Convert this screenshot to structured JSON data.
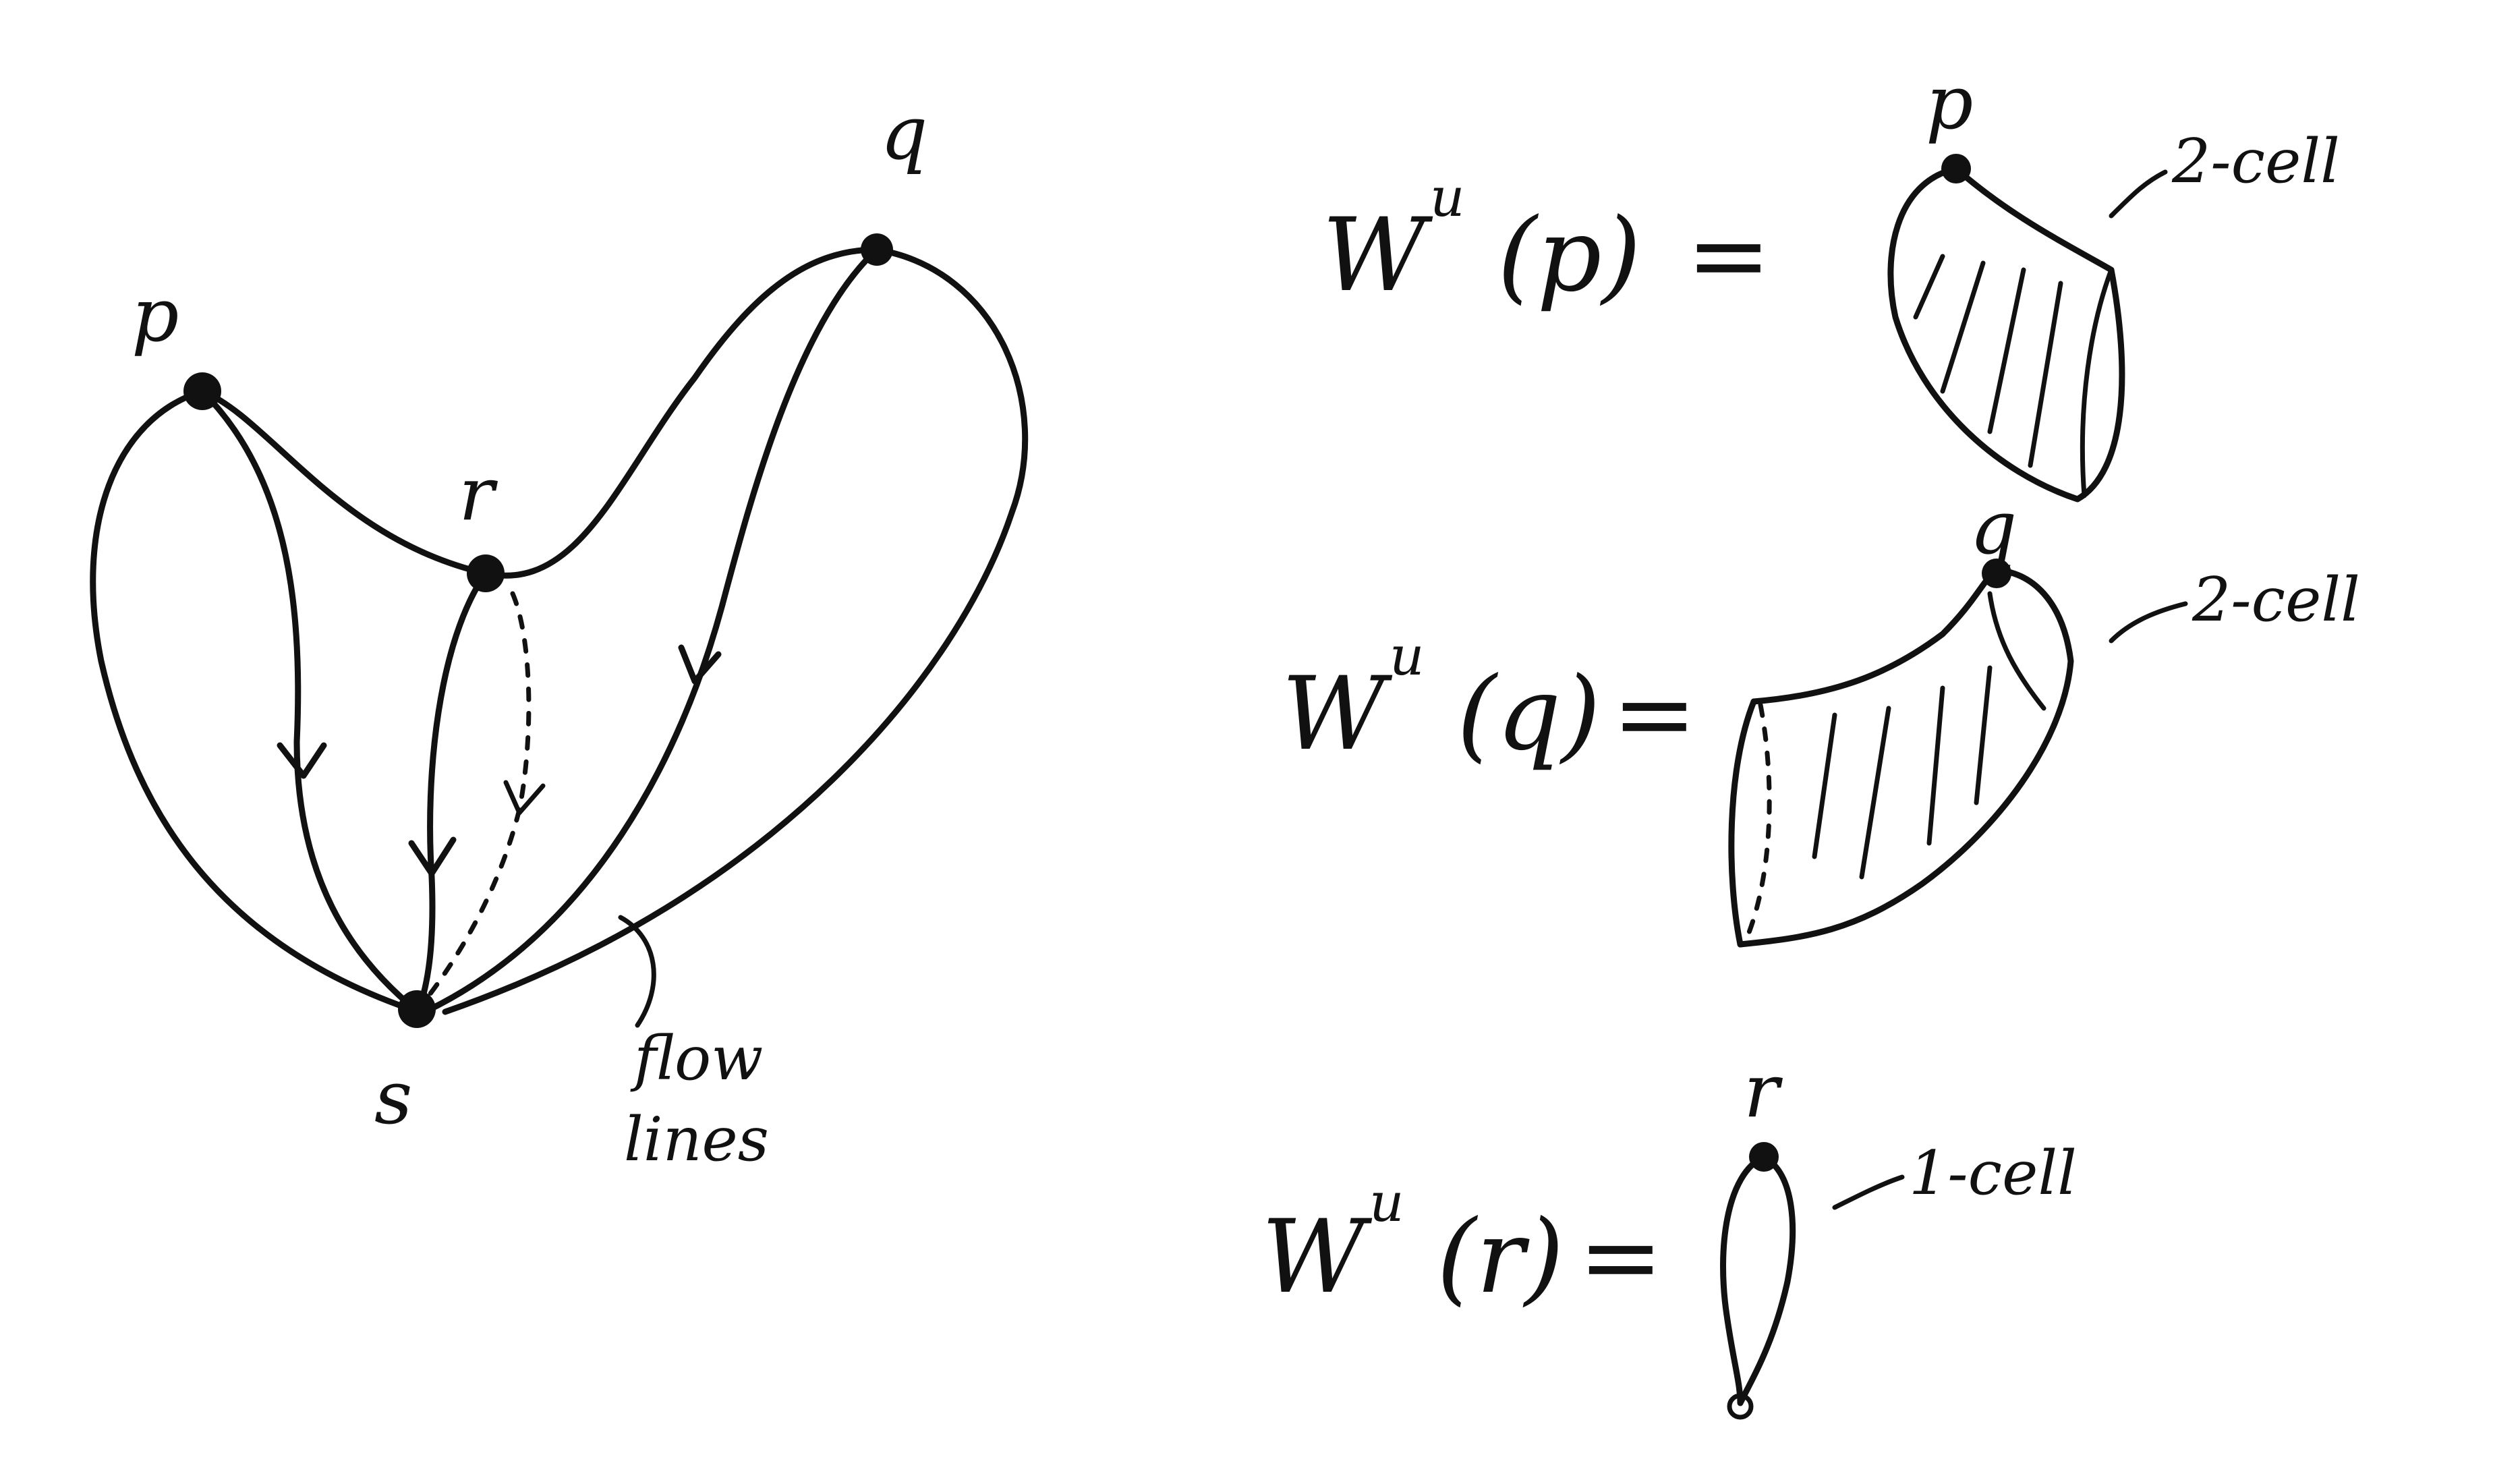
{
  "figure": {
    "left": {
      "labels": {
        "p": "p",
        "q": "q",
        "r": "r",
        "s": "s"
      },
      "annotation": [
        "flow",
        "lines"
      ]
    },
    "right": {
      "rows": [
        {
          "W": "W",
          "sup": "u",
          "arg": "(p)",
          "eq": "=",
          "top_label": "p",
          "cell_label": "2-cell"
        },
        {
          "W": "W",
          "sup": "u",
          "arg": "(q)",
          "eq": "=",
          "top_label": "q",
          "cell_label": "2-cell"
        },
        {
          "W": "W",
          "sup": "u",
          "arg": "(r)",
          "eq": "=",
          "top_label": "r",
          "cell_label": "1-cell"
        }
      ]
    }
  }
}
